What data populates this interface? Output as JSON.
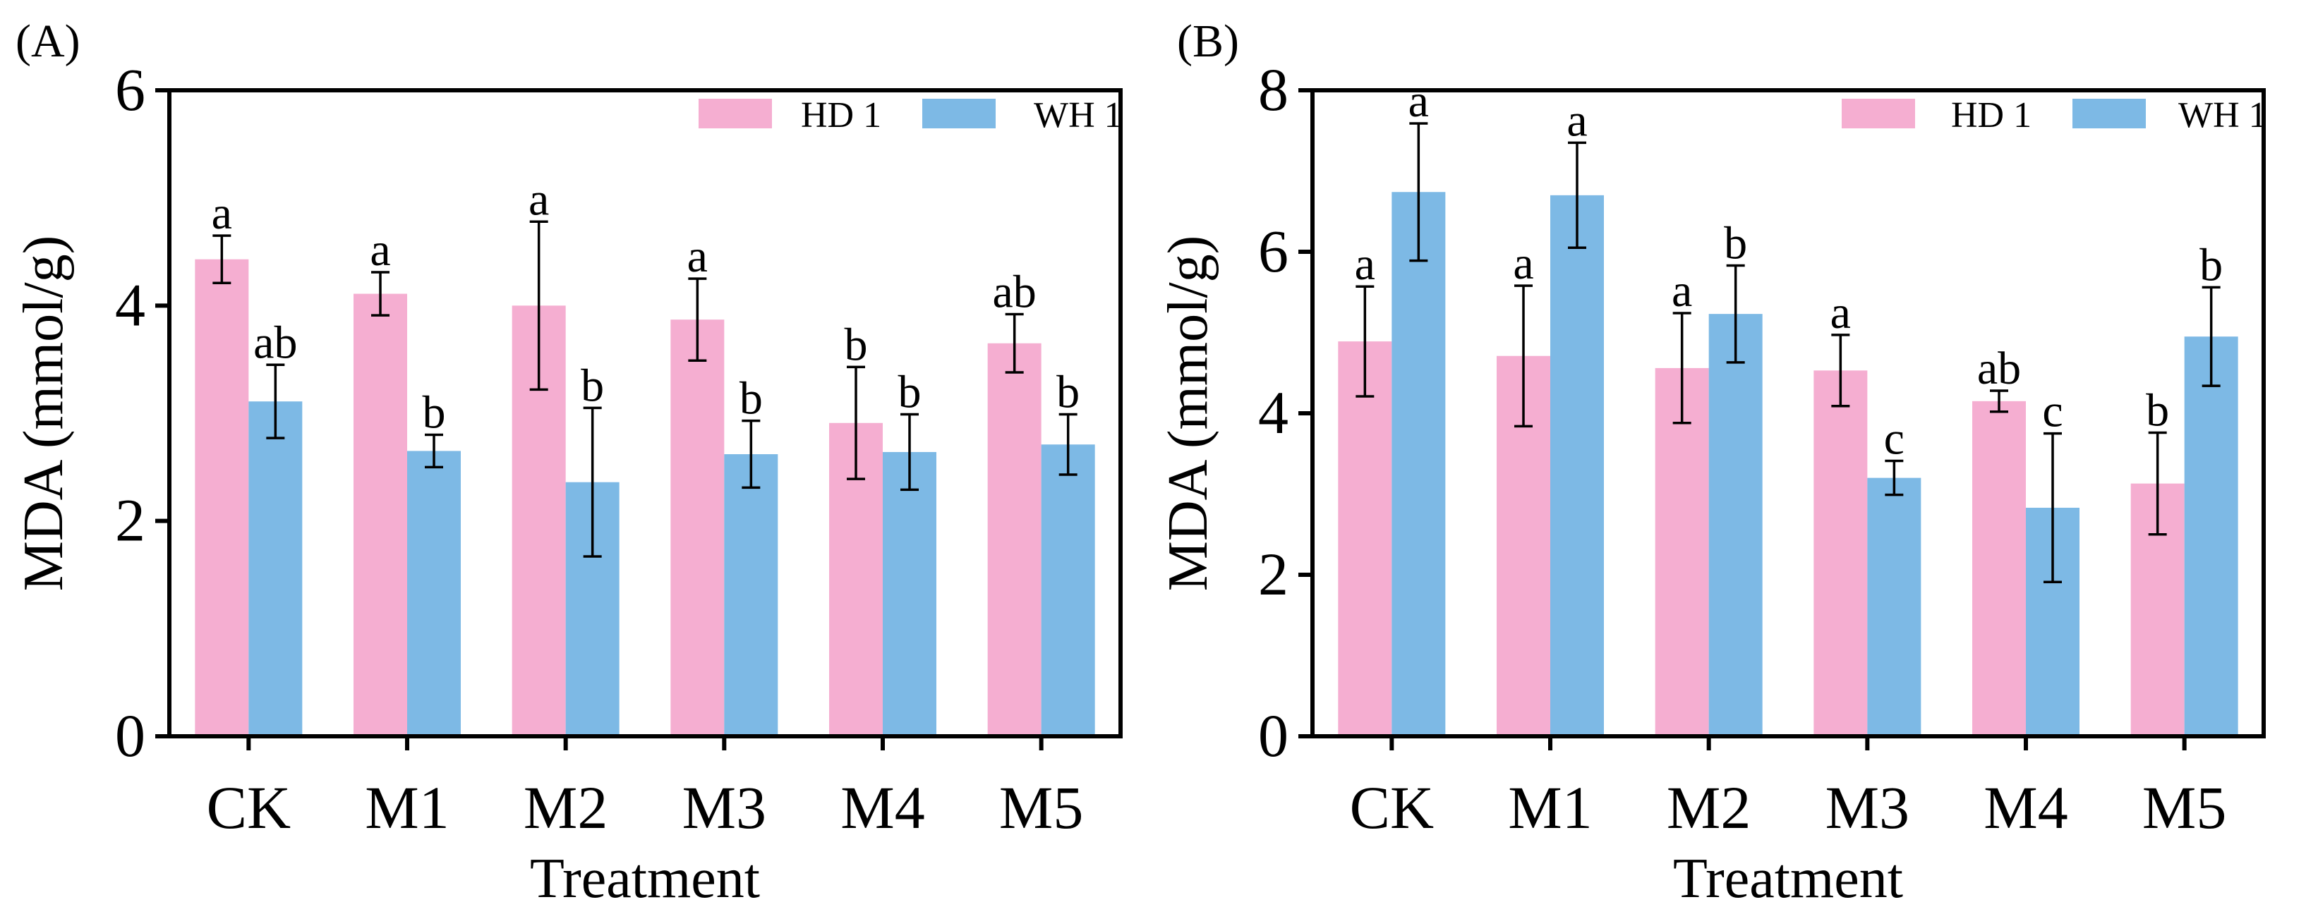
{
  "colors": {
    "HD 1": "#f5aed1",
    "WH 1": "#7db9e5",
    "axis": "#000000"
  },
  "chart_data": [
    {
      "panel": "(A)",
      "type": "bar",
      "categories": [
        "CK",
        "M1",
        "M2",
        "M3",
        "M4",
        "M5"
      ],
      "xlabel": "Treatment",
      "ylabel": "MDA (mmol/g)",
      "ylim": [
        0,
        6
      ],
      "yticks": [
        0,
        2,
        4,
        6
      ],
      "legend": "top-right",
      "series": [
        {
          "name": "HD 1",
          "values": [
            4.43,
            4.11,
            4.0,
            3.87,
            2.91,
            3.65
          ],
          "errors": [
            0.22,
            0.2,
            0.78,
            0.38,
            0.52,
            0.27
          ],
          "letters": [
            "a",
            "a",
            "a",
            "a",
            "b",
            "ab"
          ]
        },
        {
          "name": "WH 1",
          "values": [
            3.11,
            2.65,
            2.36,
            2.62,
            2.64,
            2.71
          ],
          "errors": [
            0.34,
            0.15,
            0.69,
            0.31,
            0.35,
            0.28
          ],
          "letters": [
            "ab",
            "b",
            "b",
            "b",
            "b",
            "b"
          ]
        }
      ]
    },
    {
      "panel": "(B)",
      "type": "bar",
      "categories": [
        "CK",
        "M1",
        "M2",
        "M3",
        "M4",
        "M5"
      ],
      "xlabel": "Treatment",
      "ylabel": "MDA (mmol/g)",
      "ylim": [
        0,
        8
      ],
      "yticks": [
        0,
        2,
        4,
        6,
        8
      ],
      "legend": "top-right",
      "series": [
        {
          "name": "HD 1",
          "values": [
            4.89,
            4.71,
            4.56,
            4.53,
            4.15,
            3.13
          ],
          "errors": [
            0.68,
            0.87,
            0.68,
            0.44,
            0.13,
            0.63
          ],
          "letters": [
            "a",
            "a",
            "a",
            "a",
            "ab",
            "b"
          ]
        },
        {
          "name": "WH 1",
          "values": [
            6.74,
            6.7,
            5.23,
            3.2,
            2.83,
            4.95
          ],
          "errors": [
            0.85,
            0.65,
            0.6,
            0.21,
            0.92,
            0.61
          ],
          "letters": [
            "a",
            "a",
            "b",
            "c",
            "c",
            "b"
          ]
        }
      ]
    }
  ]
}
